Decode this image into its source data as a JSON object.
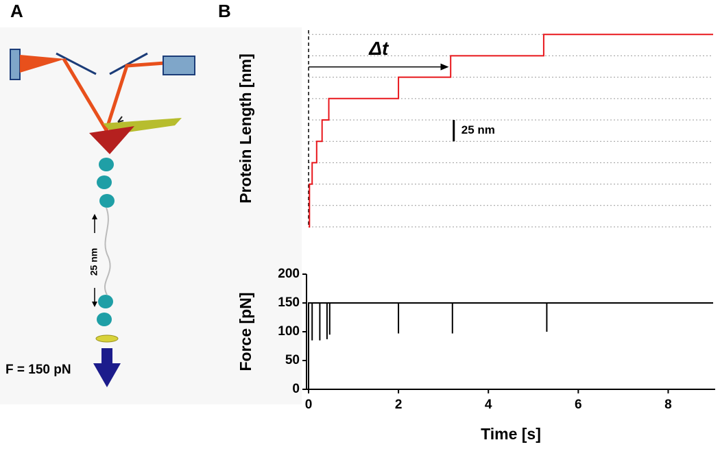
{
  "panel_labels": [
    "A",
    "B"
  ],
  "diagram": {
    "distance_label": "25 nm",
    "force_label": "F = 150 pN"
  },
  "chart_data": [
    {
      "type": "line",
      "ylabel": "Protein Length [nm]",
      "x": [
        0,
        0.02,
        0.02,
        0.08,
        0.08,
        0.18,
        0.18,
        0.3,
        0.3,
        0.45,
        0.45,
        2.0,
        2.0,
        3.16,
        3.16,
        5.23,
        5.23,
        9
      ],
      "values": [
        0,
        0,
        50,
        50,
        75,
        75,
        100,
        100,
        125,
        125,
        150,
        150,
        175,
        175,
        200,
        200,
        225,
        225
      ],
      "color": "#e8161b",
      "xlim": [
        0,
        9
      ],
      "ylim": [
        0,
        230
      ],
      "ygrid": [
        0,
        25,
        50,
        75,
        100,
        125,
        150,
        175,
        200,
        225
      ],
      "annotation": {
        "text": "Δt",
        "x": [
          0,
          3.12
        ],
        "y": 187
      },
      "scale_bar": {
        "label": "25 nm",
        "x": 3.23,
        "y": 100,
        "value": 25
      }
    },
    {
      "type": "line",
      "xlabel": "Time [s]",
      "ylabel": "Force [pN]",
      "x": [
        0,
        0,
        0.08,
        0.08,
        0.08,
        0.25,
        0.25,
        0.25,
        0.41,
        0.41,
        0.41,
        0.47,
        0.47,
        0.47,
        2.0,
        2.0,
        2.0,
        3.2,
        3.2,
        3.2,
        5.3,
        5.3,
        5.3,
        9
      ],
      "values": [
        0,
        150,
        150,
        85,
        150,
        150,
        85,
        150,
        150,
        87,
        150,
        150,
        95,
        150,
        150,
        97,
        150,
        150,
        97,
        150,
        150,
        100,
        150,
        150
      ],
      "color": "#000000",
      "xlim": [
        0,
        9
      ],
      "ylim": [
        0,
        200
      ],
      "xticks": [
        0,
        2,
        4,
        6,
        8
      ],
      "yticks": [
        0,
        50,
        100,
        150,
        200
      ]
    }
  ]
}
